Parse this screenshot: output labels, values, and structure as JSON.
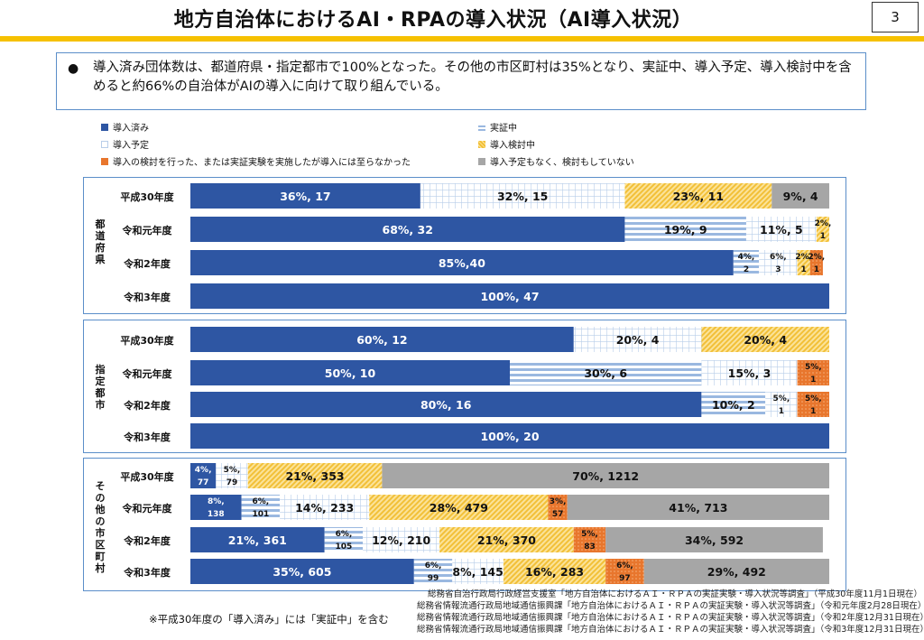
{
  "title": "地方自治体におけるAI・RPAの導入状況（AI導入状況）",
  "page_number": "3",
  "summary": {
    "bullet": "●",
    "text": "導入済み団体数は、都道府県・指定都市で100%となった。その他の市区町村は35%となり、実証中、導入予定、導入検討中を含めると約66%の自治体がAIの導入に向けて取り組んでいる。"
  },
  "legend": [
    {
      "label": "導入済み",
      "color": "#2e56a3",
      "pattern": "solid"
    },
    {
      "label": "実証中",
      "color": "#9ab8e0",
      "pattern": "hstripe"
    },
    {
      "label": "導入予定",
      "color": "#b8cde9",
      "pattern": "grid"
    },
    {
      "label": "導入検討中",
      "color": "#f2c038",
      "pattern": "diag"
    },
    {
      "label": "導入の検討を行った、または実証実験を実施したが導入には至らなかった",
      "color": "#e8762d",
      "pattern": "dots"
    },
    {
      "label": "導入予定もなく、検討もしていない",
      "color": "#a6a6a6",
      "pattern": "solid"
    }
  ],
  "chart_data": {
    "type": "bar",
    "orientation": "horizontal",
    "stacked": true,
    "x_unit": "%",
    "xlim": [
      0,
      100
    ],
    "series_names": [
      "導入済み",
      "実証中",
      "導入予定",
      "導入検討中",
      "導入の検討を行った、または実証実験を実施したが導入には至らなかった",
      "導入予定もなく、検討もしていない"
    ],
    "groups": [
      {
        "name": "都道府県",
        "rows": [
          {
            "label": "平成30年度",
            "segments": [
              {
                "series": 0,
                "pct": 36,
                "text": "36%, 17"
              },
              {
                "series": 2,
                "pct": 32,
                "text": "32%, 15"
              },
              {
                "series": 3,
                "pct": 23,
                "text": "23%, 11"
              },
              {
                "series": 5,
                "pct": 9,
                "text": "9%, 4"
              }
            ]
          },
          {
            "label": "令和元年度",
            "segments": [
              {
                "series": 0,
                "pct": 68,
                "text": "68%, 32"
              },
              {
                "series": 1,
                "pct": 19,
                "text": "19%, 9"
              },
              {
                "series": 2,
                "pct": 11,
                "text": "11%, 5"
              },
              {
                "series": 3,
                "pct": 2,
                "text": "2%,",
                "sub": "1"
              }
            ]
          },
          {
            "label": "令和2年度",
            "segments": [
              {
                "series": 0,
                "pct": 85,
                "text": "85%,40"
              },
              {
                "series": 1,
                "pct": 4,
                "text": "4%,",
                "sub": "2"
              },
              {
                "series": 2,
                "pct": 6,
                "text": "6%,",
                "sub": "3"
              },
              {
                "series": 3,
                "pct": 2,
                "text": "2%,",
                "sub": "1"
              },
              {
                "series": 4,
                "pct": 2,
                "text": "2%,",
                "sub": "1"
              }
            ]
          },
          {
            "label": "令和3年度",
            "segments": [
              {
                "series": 0,
                "pct": 100,
                "text": "100%, 47"
              }
            ]
          }
        ]
      },
      {
        "name": "指定都市",
        "rows": [
          {
            "label": "平成30年度",
            "segments": [
              {
                "series": 0,
                "pct": 60,
                "text": "60%, 12"
              },
              {
                "series": 2,
                "pct": 20,
                "text": "20%, 4"
              },
              {
                "series": 3,
                "pct": 20,
                "text": "20%, 4"
              }
            ]
          },
          {
            "label": "令和元年度",
            "segments": [
              {
                "series": 0,
                "pct": 50,
                "text": "50%, 10"
              },
              {
                "series": 1,
                "pct": 30,
                "text": "30%, 6"
              },
              {
                "series": 2,
                "pct": 15,
                "text": "15%, 3"
              },
              {
                "series": 4,
                "pct": 5,
                "text": "5%,",
                "sub": "1"
              }
            ]
          },
          {
            "label": "令和2年度",
            "segments": [
              {
                "series": 0,
                "pct": 80,
                "text": "80%, 16"
              },
              {
                "series": 1,
                "pct": 10,
                "text": "10%, 2"
              },
              {
                "series": 2,
                "pct": 5,
                "text": "5%,",
                "sub": "1"
              },
              {
                "series": 4,
                "pct": 5,
                "text": "5%,",
                "sub": "1"
              }
            ]
          },
          {
            "label": "令和3年度",
            "segments": [
              {
                "series": 0,
                "pct": 100,
                "text": "100%, 20"
              }
            ]
          }
        ]
      },
      {
        "name": "その他の市区町村",
        "rows": [
          {
            "label": "平成30年度",
            "segments": [
              {
                "series": 0,
                "pct": 4,
                "text": "4%,",
                "sub": "77"
              },
              {
                "series": 2,
                "pct": 5,
                "text": "5%,",
                "sub": "79"
              },
              {
                "series": 3,
                "pct": 21,
                "text": "21%, 353"
              },
              {
                "series": 5,
                "pct": 70,
                "text": "70%, 1212"
              }
            ]
          },
          {
            "label": "令和元年度",
            "segments": [
              {
                "series": 0,
                "pct": 8,
                "text": "8%,",
                "sub": "138"
              },
              {
                "series": 1,
                "pct": 6,
                "text": "6%,",
                "sub": "101"
              },
              {
                "series": 2,
                "pct": 14,
                "text": "14%, 233"
              },
              {
                "series": 3,
                "pct": 28,
                "text": "28%, 479"
              },
              {
                "series": 4,
                "pct": 3,
                "text": "3%,",
                "sub": "57"
              },
              {
                "series": 5,
                "pct": 41,
                "text": "41%, 713"
              }
            ]
          },
          {
            "label": "令和2年度",
            "segments": [
              {
                "series": 0,
                "pct": 21,
                "text": "21%, 361"
              },
              {
                "series": 1,
                "pct": 6,
                "text": "6%,",
                "sub": "105"
              },
              {
                "series": 2,
                "pct": 12,
                "text": "12%, 210"
              },
              {
                "series": 3,
                "pct": 21,
                "text": "21%, 370"
              },
              {
                "series": 4,
                "pct": 5,
                "text": "5%,",
                "sub": "83"
              },
              {
                "series": 5,
                "pct": 34,
                "text": "34%, 592"
              }
            ]
          },
          {
            "label": "令和3年度",
            "segments": [
              {
                "series": 0,
                "pct": 35,
                "text": "35%, 605"
              },
              {
                "series": 1,
                "pct": 6,
                "text": "6%,",
                "sub": "99"
              },
              {
                "series": 2,
                "pct": 8,
                "text": "8%, 145"
              },
              {
                "series": 3,
                "pct": 16,
                "text": "16%, 283"
              },
              {
                "series": 4,
                "pct": 6,
                "text": "6%,",
                "sub": "97"
              },
              {
                "series": 5,
                "pct": 29,
                "text": "29%, 492"
              }
            ]
          }
        ]
      }
    ]
  },
  "sources": [
    "総務省自治行政局行政経営支援室「地方自治体におけるＡＩ・ＲＰＡの実証実験・導入状況等調査」（平成30年度11月1日現在）",
    "総務省情報流通行政局地域通信振興課「地方自治体におけるＡＩ・ＲＰＡの実証実験・導入状況等調査」（令和元年度2月28日現在）",
    "総務省情報流通行政局地域通信振興課「地方自治体におけるＡＩ・ＲＰＡの実証実験・導入状況等調査」（令和2年度12月31日現在）",
    "総務省情報流通行政局地域通信振興課「地方自治体におけるＡＩ・ＲＰＡの実証実験・導入状況等調査」（令和3年度12月31日現在）"
  ],
  "footnote": "※平成30年度の「導入済み」には「実証中」を含む"
}
